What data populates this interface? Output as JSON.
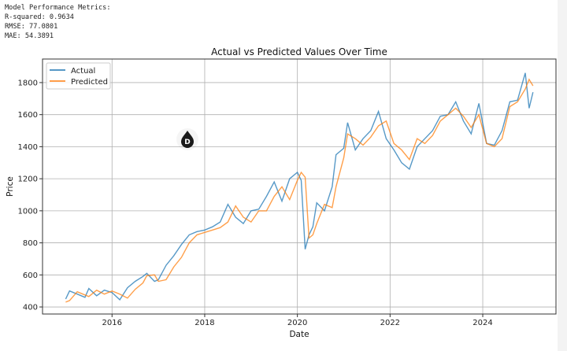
{
  "metrics": {
    "heading": "Model Performance Metrics:",
    "r_squared": "R-squared: 0.9634",
    "rmse": "RMSE: 77.0801",
    "mae": "MAE: 54.3891"
  },
  "chart_data": {
    "type": "line",
    "title": "Actual vs Predicted Values Over Time",
    "xlabel": "Date",
    "ylabel": "Price",
    "xlim": [
      2014.5,
      2025.58
    ],
    "ylim": [
      356,
      1947
    ],
    "xticks": [
      "2016",
      "2018",
      "2020",
      "2022",
      "2024"
    ],
    "yticks": [
      "400",
      "600",
      "800",
      "1000",
      "1200",
      "1400",
      "1600",
      "1800"
    ],
    "grid": true,
    "legend": "top-left",
    "colors": {
      "Actual": "#1f77b4",
      "Predicted": "#ff7f0e"
    },
    "x": [
      "2015-01",
      "2015-02",
      "2015-04",
      "2015-06",
      "2015-07",
      "2015-09",
      "2015-11",
      "2016-01",
      "2016-03",
      "2016-05",
      "2016-07",
      "2016-09",
      "2016-10",
      "2016-12",
      "2017-01",
      "2017-03",
      "2017-05",
      "2017-07",
      "2017-09",
      "2017-11",
      "2018-01",
      "2018-03",
      "2018-05",
      "2018-07",
      "2018-09",
      "2018-11",
      "2019-01",
      "2019-03",
      "2019-05",
      "2019-07",
      "2019-09",
      "2019-11",
      "2020-01",
      "2020-02",
      "2020-03",
      "2020-04",
      "2020-05",
      "2020-06",
      "2020-08",
      "2020-10",
      "2020-11",
      "2021-01",
      "2021-02",
      "2021-04",
      "2021-06",
      "2021-08",
      "2021-10",
      "2021-12",
      "2022-02",
      "2022-04",
      "2022-06",
      "2022-08",
      "2022-10",
      "2022-12",
      "2023-02",
      "2023-04",
      "2023-06",
      "2023-08",
      "2023-10",
      "2023-12",
      "2024-02",
      "2024-04",
      "2024-06",
      "2024-08",
      "2024-10",
      "2024-12",
      "2025-01",
      "2025-02"
    ],
    "series": [
      {
        "name": "Actual",
        "values": [
          450,
          500,
          480,
          460,
          515,
          470,
          505,
          490,
          445,
          520,
          560,
          590,
          610,
          560,
          570,
          660,
          720,
          790,
          850,
          870,
          880,
          900,
          930,
          1040,
          960,
          920,
          1000,
          1010,
          1090,
          1180,
          1060,
          1200,
          1240,
          1190,
          760,
          850,
          900,
          1050,
          1000,
          1150,
          1350,
          1390,
          1550,
          1380,
          1450,
          1500,
          1620,
          1450,
          1380,
          1300,
          1260,
          1400,
          1450,
          1500,
          1590,
          1600,
          1680,
          1560,
          1480,
          1670,
          1420,
          1410,
          1500,
          1680,
          1690,
          1860,
          1640,
          1740
        ]
      },
      {
        "name": "Predicted",
        "values": [
          430,
          440,
          495,
          475,
          465,
          505,
          480,
          500,
          480,
          455,
          510,
          550,
          595,
          600,
          560,
          570,
          650,
          710,
          800,
          850,
          865,
          880,
          895,
          930,
          1030,
          960,
          930,
          1000,
          1000,
          1090,
          1150,
          1070,
          1190,
          1240,
          1210,
          830,
          850,
          920,
          1040,
          1020,
          1150,
          1330,
          1480,
          1450,
          1410,
          1460,
          1530,
          1560,
          1420,
          1380,
          1320,
          1450,
          1420,
          1470,
          1560,
          1600,
          1640,
          1590,
          1520,
          1600,
          1420,
          1400,
          1450,
          1650,
          1680,
          1760,
          1820,
          1780
        ]
      }
    ]
  },
  "overlay_icon": "droplet-cursor-icon"
}
